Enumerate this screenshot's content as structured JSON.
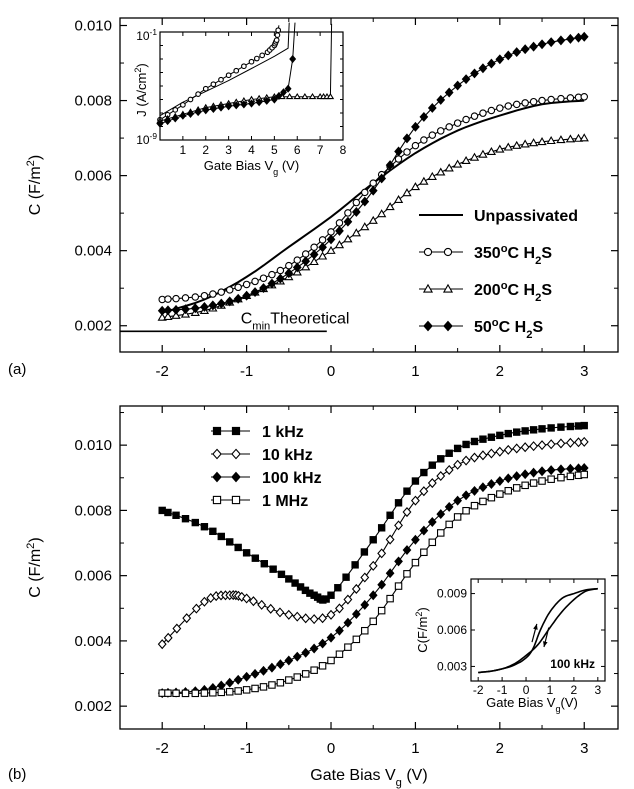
{
  "chart_data": [
    {
      "panel_label": "(a)",
      "type": "line",
      "xlabel": "",
      "ylabel": "C (F/m²)",
      "xlim": [
        -2.5,
        3.4
      ],
      "ylim": [
        0.0013,
        0.0102
      ],
      "x_ticks": [
        "-2",
        "-1",
        "0",
        "1",
        "2",
        "3"
      ],
      "y_ticks": [
        "0.002",
        "0.004",
        "0.006",
        "0.008",
        "0.010"
      ],
      "legend_position": "right",
      "series": [
        {
          "name": "Unpassivated",
          "marker": "none",
          "x": [
            -2,
            -1.5,
            -1,
            -0.5,
            0,
            0.5,
            1,
            1.5,
            2,
            2.5,
            3
          ],
          "y": [
            0.00235,
            0.0027,
            0.0033,
            0.0041,
            0.0049,
            0.0058,
            0.0066,
            0.0072,
            0.0076,
            0.0079,
            0.008
          ]
        },
        {
          "name": "350°C H₂S",
          "marker": "open-circle",
          "x": [
            -2,
            -1.5,
            -1,
            -0.5,
            0,
            0.5,
            1,
            1.5,
            2,
            2.5,
            3
          ],
          "y": [
            0.0027,
            0.0028,
            0.0031,
            0.0036,
            0.0045,
            0.0058,
            0.0068,
            0.0074,
            0.0078,
            0.008,
            0.0081
          ]
        },
        {
          "name": "200°C H₂S",
          "marker": "open-triangle",
          "x": [
            -2,
            -1.5,
            -1,
            -0.5,
            0,
            0.5,
            1,
            1.5,
            2,
            2.5,
            3
          ],
          "y": [
            0.00222,
            0.0024,
            0.0028,
            0.0033,
            0.004,
            0.0048,
            0.0057,
            0.0063,
            0.0067,
            0.0069,
            0.007
          ]
        },
        {
          "name": "50°C H₂S",
          "marker": "filled-diamond",
          "x": [
            -2,
            -1.5,
            -1,
            -0.5,
            0,
            0.5,
            1,
            1.5,
            2,
            2.5,
            3
          ],
          "y": [
            0.0024,
            0.0025,
            0.0028,
            0.0034,
            0.0043,
            0.0056,
            0.0073,
            0.0084,
            0.0091,
            0.0095,
            0.0097
          ]
        }
      ],
      "annotation": {
        "text": "C_min Theoretical",
        "value": 0.00185,
        "x_range": [
          -2.5,
          -0.05
        ]
      },
      "inset": {
        "xlabel": "Gate Bias V_g (V)",
        "ylabel": "J (A/cm²)",
        "y_scale": "log",
        "xlim": [
          0,
          8
        ],
        "ylim_exp": [
          -9,
          -1
        ],
        "x_ticks": [
          "1",
          "2",
          "3",
          "4",
          "5",
          "6",
          "7",
          "8"
        ],
        "y_ticks": [
          "10⁻⁹",
          "10⁻¹"
        ],
        "series": [
          {
            "name": "Unpassivated",
            "marker": "none",
            "x": [
              0,
              1,
              2,
              3,
              4,
              5,
              5.6,
              5.65
            ],
            "y_exp": [
              -7.2,
              -6.2,
              -5.4,
              -4.6,
              -3.7,
              -2.8,
              -2.2,
              -0.3
            ]
          },
          {
            "name": "350°C H₂S",
            "marker": "open-circle",
            "x": [
              0,
              1,
              2,
              3,
              4,
              4.7,
              5,
              5.1,
              5.2
            ],
            "y_exp": [
              -7.5,
              -6.4,
              -5.2,
              -4.2,
              -3.2,
              -2.5,
              -2,
              -1.6,
              -0.5
            ]
          },
          {
            "name": "200°C H₂S",
            "marker": "open-triangle",
            "x": [
              0,
              1,
              2,
              3,
              4,
              5,
              6,
              7,
              7.45,
              7.5
            ],
            "y_exp": [
              -7.6,
              -7.1,
              -6.6,
              -6.3,
              -6,
              -5.8,
              -5.8,
              -5.8,
              -5.8,
              -0.4
            ]
          },
          {
            "name": "50°C H₂S",
            "marker": "filled-diamond",
            "x": [
              0,
              1,
              2,
              3,
              4,
              5,
              5.6,
              5.8,
              5.9
            ],
            "y_exp": [
              -7.8,
              -7.2,
              -6.8,
              -6.5,
              -6.3,
              -6,
              -5.2,
              -3,
              -0.3
            ]
          }
        ]
      }
    },
    {
      "panel_label": "(b)",
      "type": "line",
      "xlabel": "Gate Bias V_g (V)",
      "ylabel": "C (F/m²)",
      "xlim": [
        -2.5,
        3.4
      ],
      "ylim": [
        0.0013,
        0.0112
      ],
      "x_ticks": [
        "-2",
        "-1",
        "0",
        "1",
        "2",
        "3"
      ],
      "y_ticks": [
        "0.002",
        "0.004",
        "0.006",
        "0.008",
        "0.010"
      ],
      "legend_position": "top-left",
      "series": [
        {
          "name": "1 kHz",
          "marker": "filled-square",
          "x": [
            -2,
            -1.5,
            -1,
            -0.5,
            -0.2,
            0,
            0.5,
            1,
            1.5,
            2,
            2.5,
            3
          ],
          "y": [
            0.008,
            0.0075,
            0.0067,
            0.0059,
            0.0054,
            0.0054,
            0.0071,
            0.0089,
            0.0099,
            0.0103,
            0.0105,
            0.0106
          ]
        },
        {
          "name": "10 kHz",
          "marker": "open-diamond",
          "x": [
            -2,
            -1.5,
            -1.2,
            -1,
            -0.5,
            0,
            0.5,
            1,
            1.5,
            2,
            2.5,
            3
          ],
          "y": [
            0.0039,
            0.0052,
            0.0054,
            0.0053,
            0.0048,
            0.0048,
            0.0063,
            0.0083,
            0.0094,
            0.0098,
            0.01,
            0.0101
          ]
        },
        {
          "name": "100 kHz",
          "marker": "filled-diamond",
          "x": [
            -2,
            -1.5,
            -1,
            -0.5,
            0,
            0.5,
            1,
            1.5,
            2,
            2.5,
            3
          ],
          "y": [
            0.0024,
            0.0025,
            0.0029,
            0.0034,
            0.0041,
            0.0054,
            0.0071,
            0.0083,
            0.0089,
            0.0092,
            0.0093
          ]
        },
        {
          "name": "1 MHz",
          "marker": "open-square",
          "x": [
            -2,
            -1.5,
            -1,
            -0.5,
            0,
            0.5,
            1,
            1.5,
            2,
            2.5,
            3
          ],
          "y": [
            0.0024,
            0.0024,
            0.0025,
            0.0028,
            0.0034,
            0.0046,
            0.0064,
            0.0078,
            0.0085,
            0.0089,
            0.0091
          ]
        }
      ],
      "inset": {
        "xlabel": "Gate Bias V_g (V)",
        "ylabel": "C(F/m²)",
        "label": "100 kHz",
        "xlim": [
          -2.3,
          3.3
        ],
        "ylim": [
          0.0018,
          0.0102
        ],
        "x_ticks": [
          "-2",
          "-1",
          "0",
          "1",
          "2",
          "3"
        ],
        "y_ticks": [
          "0.003",
          "0.006",
          "0.009"
        ],
        "series": [
          {
            "name": "forward",
            "x": [
              -2,
              -1.5,
              -1,
              -0.5,
              0,
              0.3,
              0.6,
              1,
              1.5,
              2,
              2.5,
              3
            ],
            "y": [
              0.0025,
              0.0026,
              0.0028,
              0.0031,
              0.0037,
              0.0045,
              0.006,
              0.0075,
              0.0086,
              0.009,
              0.0093,
              0.0094
            ]
          },
          {
            "name": "reverse",
            "x": [
              3,
              2.5,
              2,
              1.5,
              1,
              0.5,
              0,
              -0.5,
              -1,
              -1.5,
              -2
            ],
            "y": [
              0.0094,
              0.0092,
              0.0085,
              0.0075,
              0.0062,
              0.0048,
              0.0039,
              0.0032,
              0.0028,
              0.0026,
              0.0025
            ]
          }
        ]
      }
    }
  ],
  "text": {
    "a_cmin_label": "C",
    "a_cmin_sub": "min",
    "a_cmin_rest": "Theoretical",
    "a_ylabel_main": "C (F/m",
    "a_ylabel_end": ")",
    "inset_a_ylabel": "J (A/cm",
    "inset_a_ylabel_end": ")",
    "inset_a_xlabel": "Gate Bias V",
    "inset_a_xlabel_end": " (V)",
    "b_xlabel": "Gate Bias V",
    "b_xlabel_end": " (V)",
    "inset_b_ylabel": "C(F/m",
    "inset_b_ylabel_end": ")",
    "inset_b_xlabel": "Gate Bias V",
    "inset_b_xlabel_end": "(V)"
  }
}
